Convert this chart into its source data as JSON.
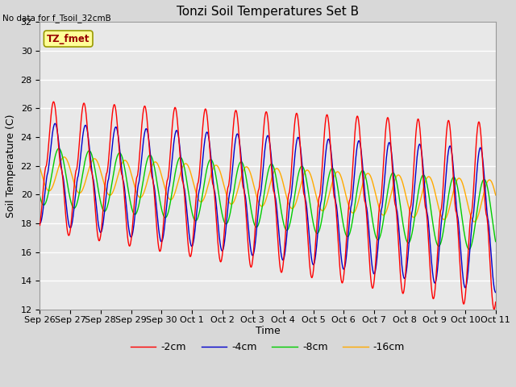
{
  "title": "Tonzi Soil Temperatures Set B",
  "ylabel": "Soil Temperature (C)",
  "xlabel": "Time",
  "no_data_text": "No data for f_Tsoil_32cmB",
  "legend_label_text": "TZ_fmet",
  "legend_entries": [
    "-2cm",
    "-4cm",
    "-8cm",
    "-16cm"
  ],
  "line_colors": [
    "#ff0000",
    "#0000cc",
    "#00cc00",
    "#ffaa00"
  ],
  "ylim": [
    12,
    32
  ],
  "yticks": [
    12,
    14,
    16,
    18,
    20,
    22,
    24,
    26,
    28,
    30,
    32
  ],
  "bg_color": "#e8e8e8",
  "fig_bg": "#d8d8d8",
  "grid_color": "#ffffff",
  "tick_labels": [
    "Sep 26",
    "Sep 27",
    "Sep 28",
    "Sep 29",
    "Sep 30",
    "Oct 1",
    "Oct 2",
    "Oct 3",
    "Oct 4",
    "Oct 5",
    "Oct 6",
    "Oct 7",
    "Oct 8",
    "Oct 9",
    "Oct 10",
    "Oct 11"
  ],
  "n_days": 15,
  "points_per_day": 96,
  "figsize": [
    6.4,
    4.8
  ],
  "dpi": 100
}
